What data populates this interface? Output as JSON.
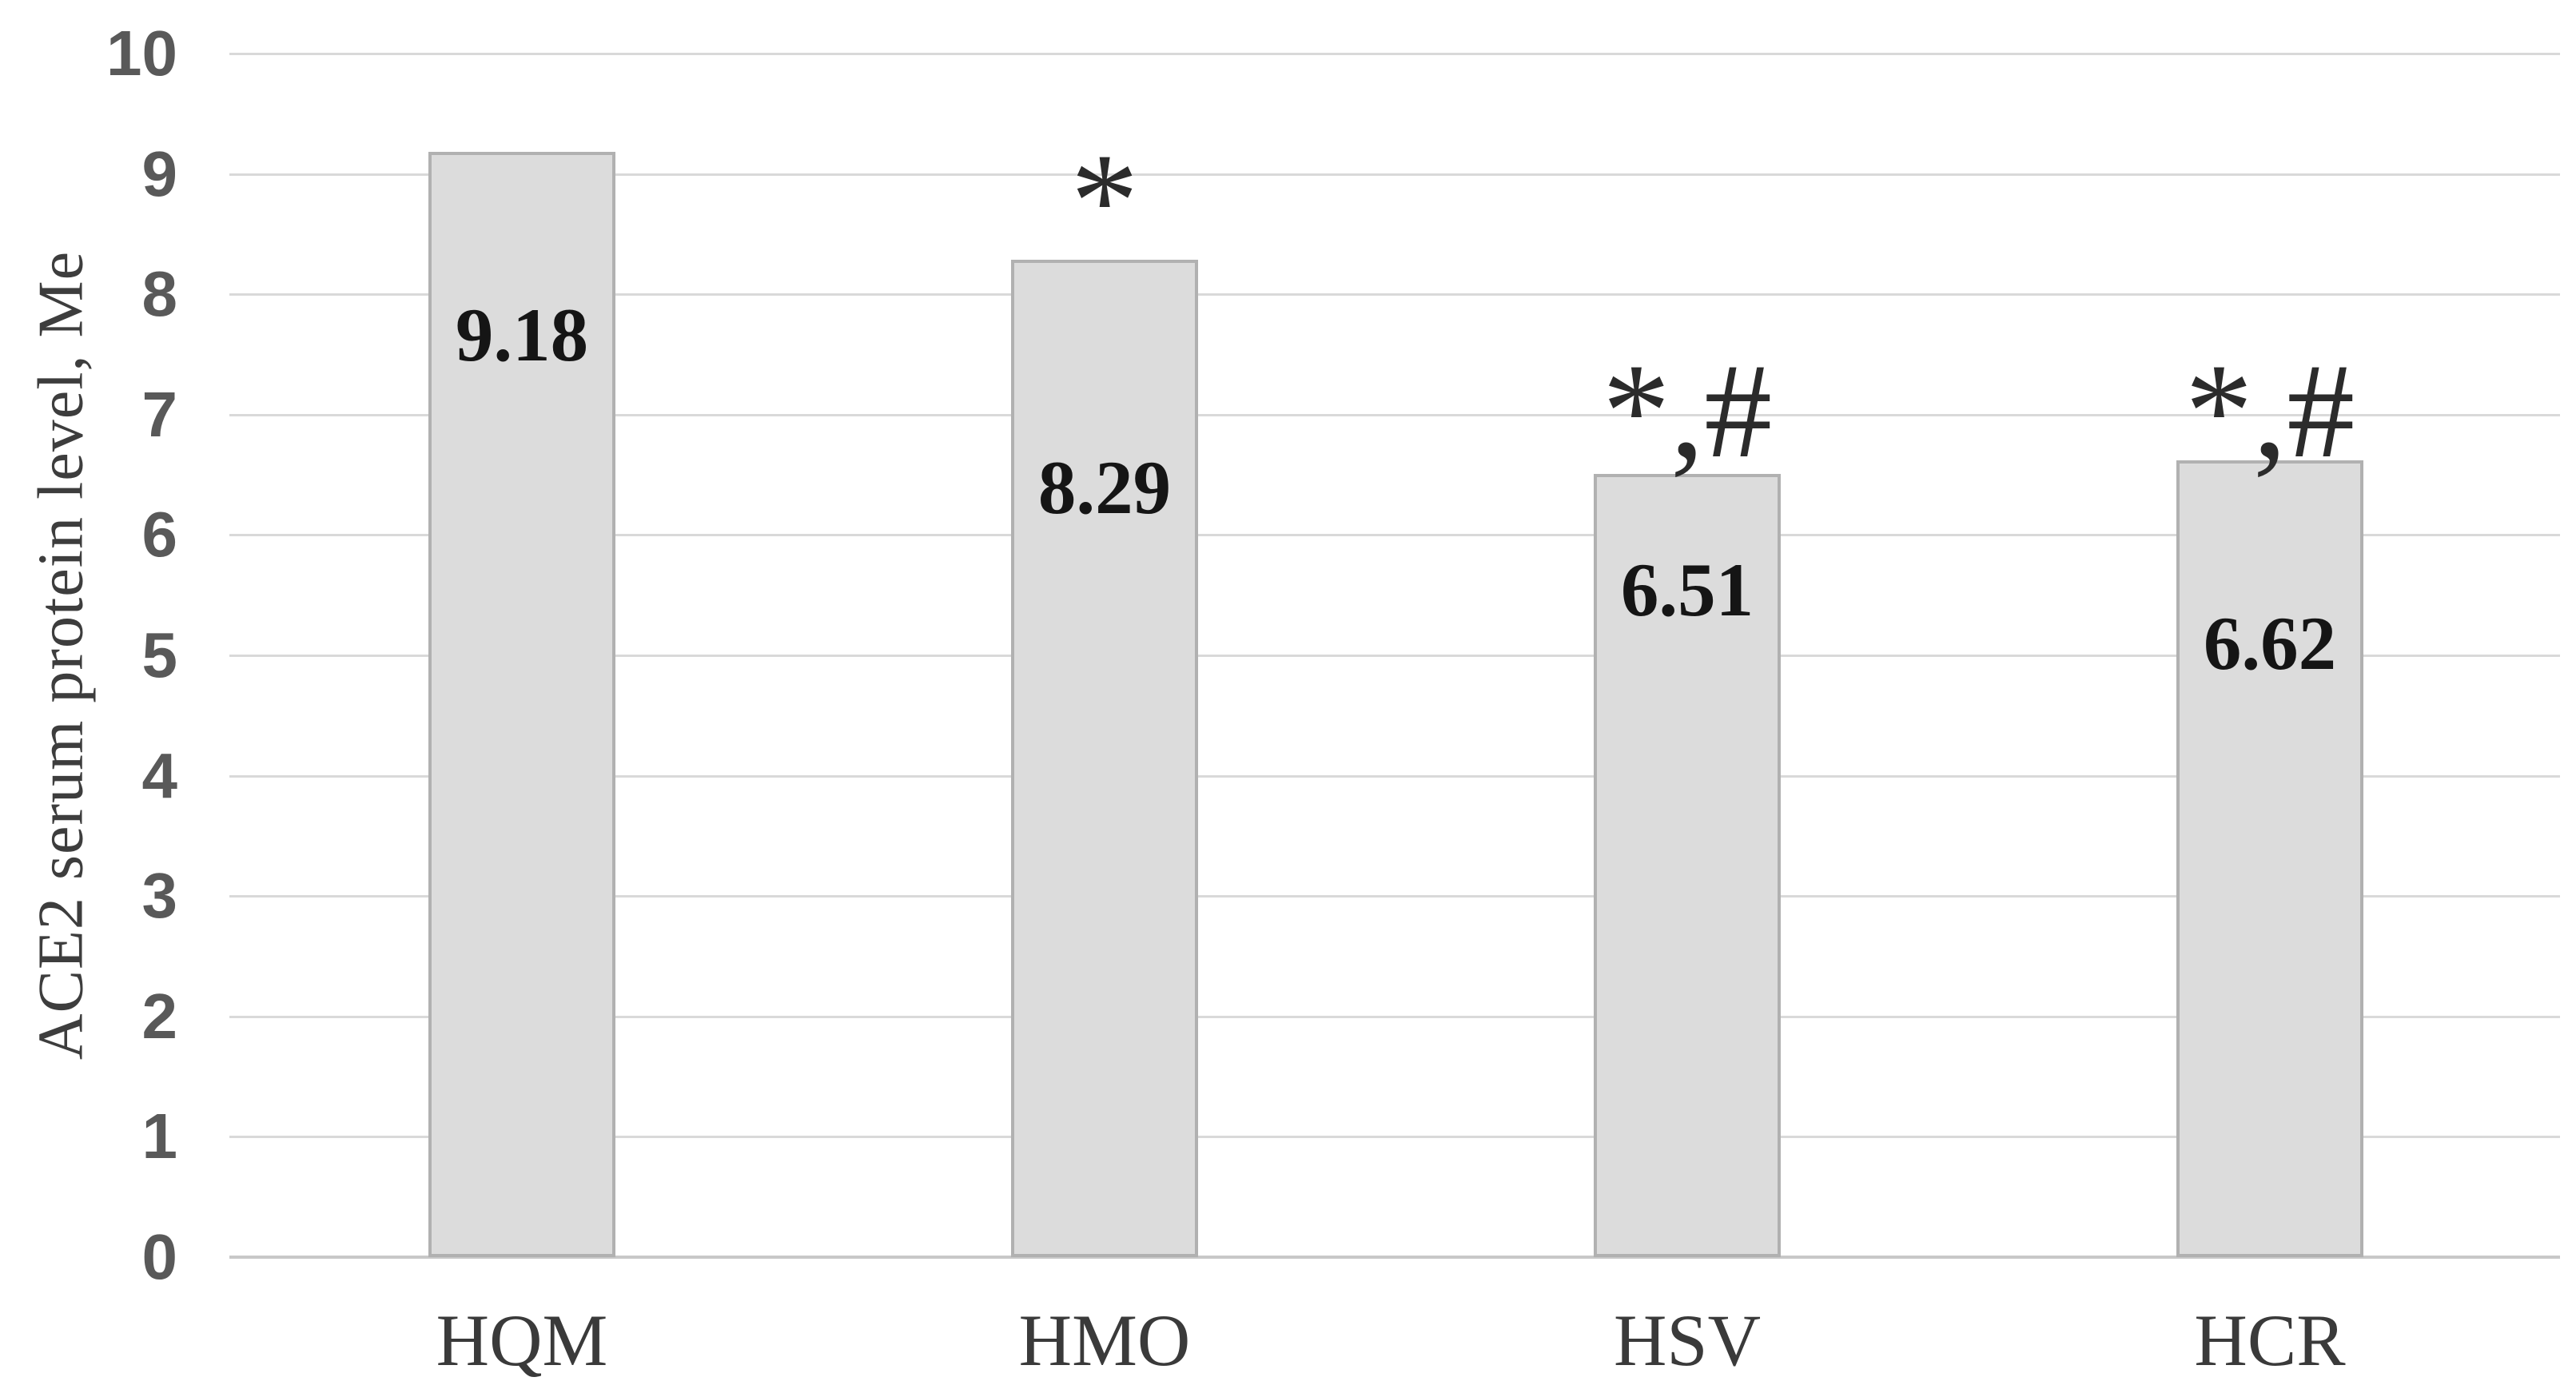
{
  "chart_data": {
    "type": "bar",
    "title": "",
    "ylabel": "ACE2 serum protein level, Me",
    "xlabel": "",
    "categories": [
      "HQM",
      "HMO",
      "HSV",
      "HCR"
    ],
    "values": [
      9.18,
      8.29,
      6.51,
      6.62
    ],
    "data_labels": [
      "9.18",
      "8.29",
      "6.51",
      "6.62"
    ],
    "annotations": [
      "",
      "*",
      "*,#",
      "*,#"
    ],
    "ylim": [
      0,
      10
    ],
    "ytick_step": 1,
    "yticks": [
      "0",
      "1",
      "2",
      "3",
      "4",
      "5",
      "6",
      "7",
      "8",
      "9",
      "10"
    ],
    "grid": true,
    "legend": null,
    "colors": {
      "bar_fill": "#dcdcdc",
      "bar_border": "#b1b1b1",
      "gridline": "#d9d9d9",
      "axis_line": "#c8c8c8",
      "tick_text": "#595959",
      "category_text": "#3a3a3a",
      "ylabel_text": "#3d3d3d",
      "data_label_text": "#151515",
      "annotation_text": "#2b2b2b",
      "background": "#ffffff"
    }
  }
}
